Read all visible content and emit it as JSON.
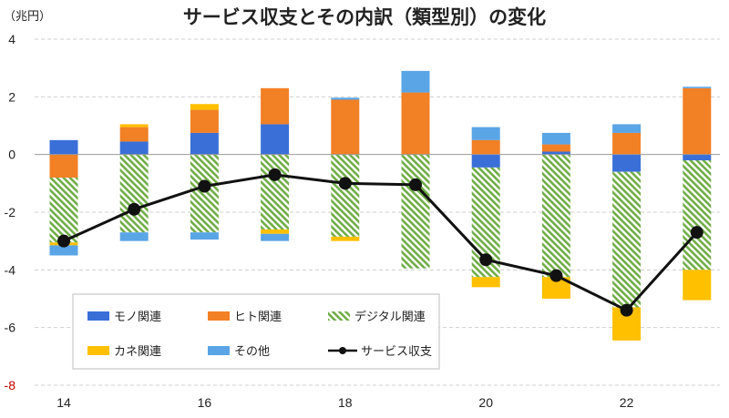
{
  "chart_data": {
    "type": "bar",
    "title": "サービス収支とその内訳（類型別）の変化",
    "ylabel": "（兆円）",
    "xlabel": "",
    "ylim": [
      -8,
      4
    ],
    "yticks": [
      "4",
      "2",
      "0",
      "-2",
      "-4",
      "-6",
      "-8"
    ],
    "ytick_values": [
      4,
      2,
      0,
      -2,
      -4,
      -6,
      -8
    ],
    "grid": true,
    "stacked": true,
    "categories": [
      "2014",
      "2015",
      "2016",
      "2017",
      "2018",
      "2019",
      "2020",
      "2021",
      "2022",
      "2023"
    ],
    "x_tick_labels": [
      "14",
      "",
      "16",
      "",
      "18",
      "",
      "20",
      "",
      "22",
      ""
    ],
    "series": [
      {
        "name": "モノ関連",
        "color": "#3a6fd8",
        "pattern": "solid",
        "values": [
          0.5,
          0.45,
          0.75,
          1.05,
          0.0,
          0.0,
          -0.45,
          0.1,
          -0.6,
          -0.2
        ]
      },
      {
        "name": "ヒト関連",
        "color": "#f28025",
        "pattern": "solid",
        "values": [
          -0.8,
          0.5,
          0.8,
          1.25,
          1.9,
          2.15,
          0.5,
          0.25,
          0.75,
          2.3
        ]
      },
      {
        "name": "デジタル関連",
        "color": "#70ad47",
        "pattern": "hatch",
        "values": [
          -2.25,
          -2.7,
          -2.7,
          -2.6,
          -2.85,
          -3.95,
          -3.8,
          -4.25,
          -4.7,
          -3.8
        ]
      },
      {
        "name": "カネ関連",
        "color": "#ffc000",
        "pattern": "solid",
        "values": [
          -0.1,
          0.1,
          0.2,
          -0.15,
          -0.15,
          0.0,
          -0.35,
          -0.75,
          -1.15,
          -1.05
        ]
      },
      {
        "name": "その他",
        "color": "#5aa5e6",
        "pattern": "solid",
        "values": [
          -0.35,
          -0.3,
          -0.25,
          -0.25,
          0.07,
          0.75,
          0.45,
          0.4,
          0.3,
          0.05
        ]
      }
    ],
    "line": {
      "name": "サービス収支",
      "color": "#111111",
      "values": [
        -3.0,
        -1.9,
        -1.1,
        -0.7,
        -1.0,
        -1.05,
        -3.65,
        -4.2,
        -5.4,
        -2.7
      ]
    },
    "legend": {
      "placement": "bottom-left-inside",
      "columns": 3
    }
  }
}
